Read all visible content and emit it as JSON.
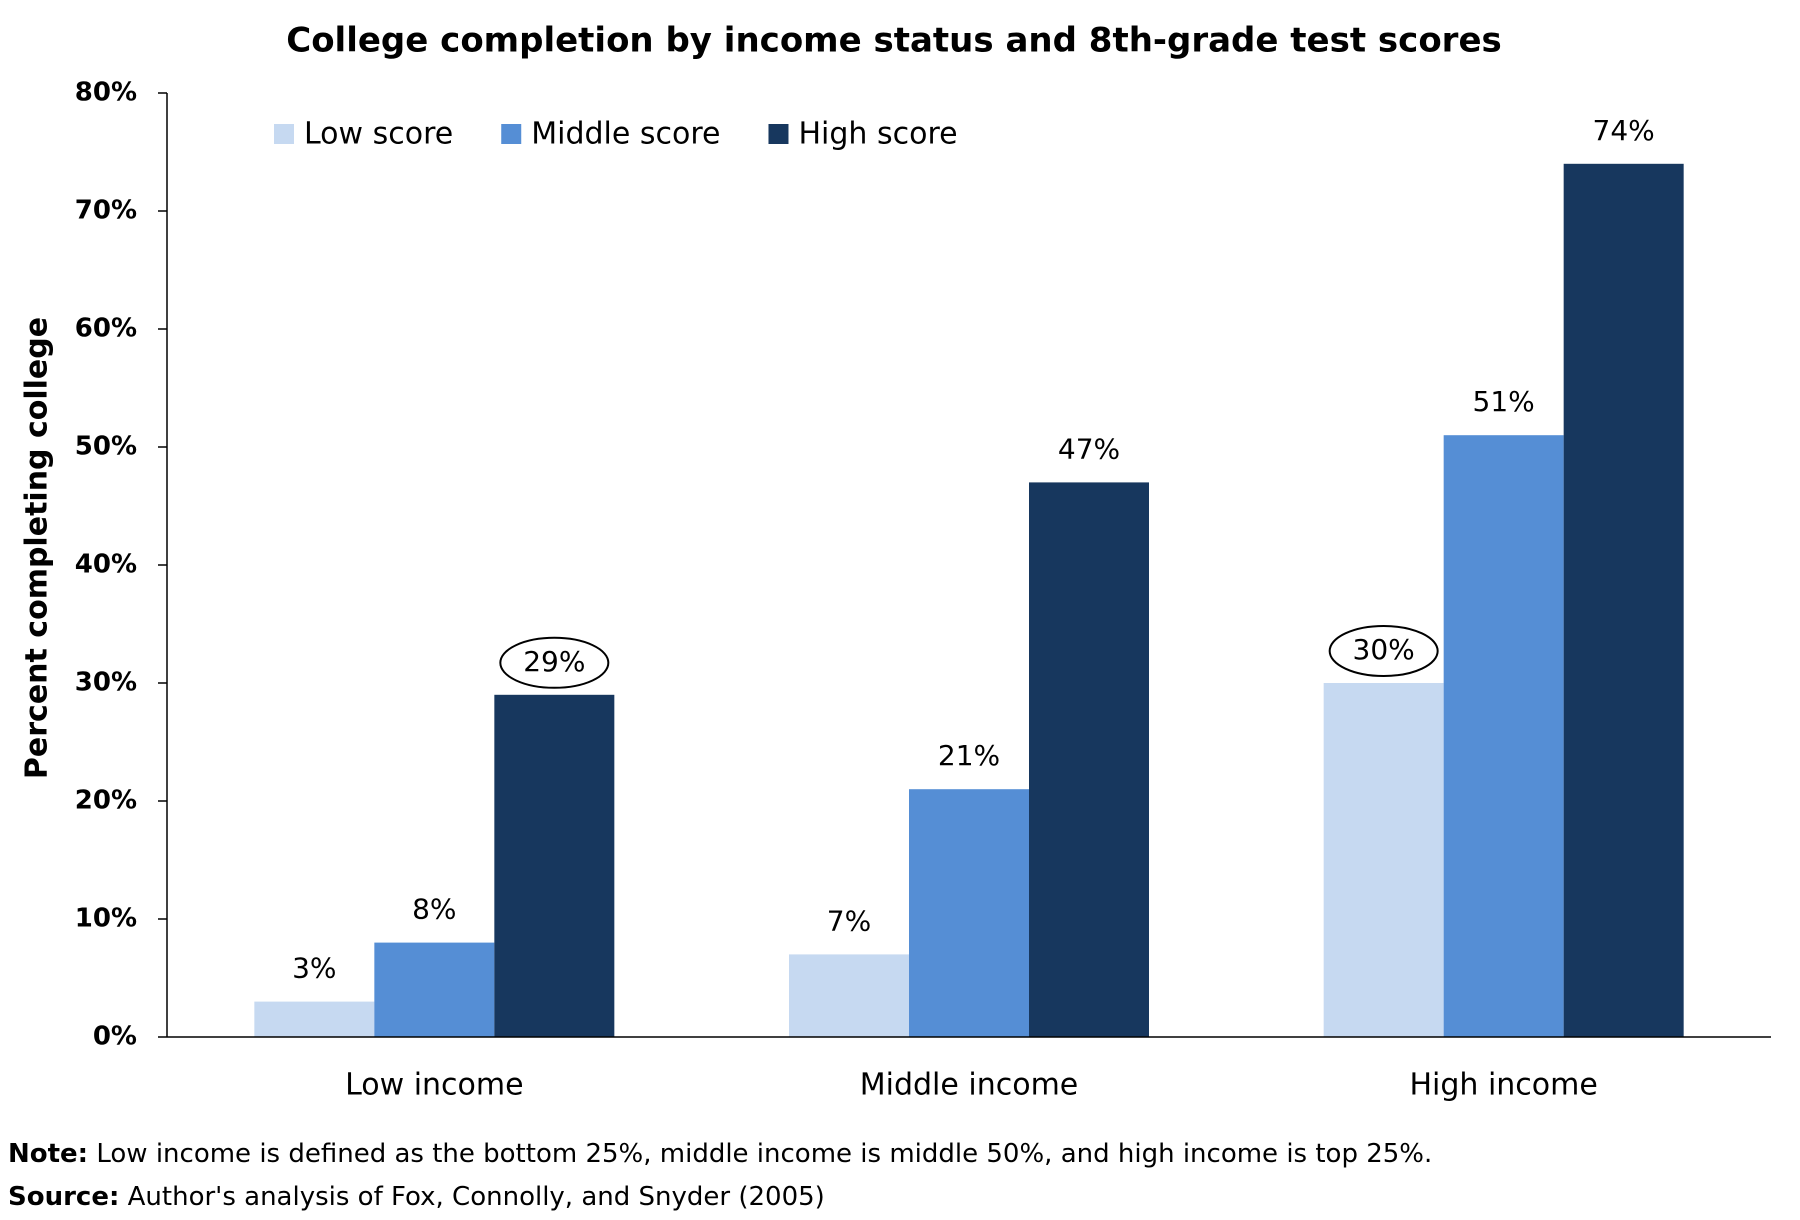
{
  "chart_data": {
    "type": "bar",
    "title": "College completion by income status and 8th-grade test scores",
    "y_label": "Percent completing college",
    "categories": [
      "Low income",
      "Middle income",
      "High income"
    ],
    "series": [
      {
        "name": "Low score",
        "color": "#c6d9f1",
        "values": [
          3,
          7,
          30
        ],
        "value_labels": [
          "3%",
          "7%",
          "30%"
        ],
        "circled": [
          false,
          false,
          true
        ]
      },
      {
        "name": "Middle score",
        "color": "#558ed5",
        "values": [
          8,
          21,
          51
        ],
        "value_labels": [
          "8%",
          "21%",
          "51%"
        ],
        "circled": [
          false,
          false,
          false
        ]
      },
      {
        "name": "High score",
        "color": "#17375e",
        "values": [
          29,
          47,
          74
        ],
        "value_labels": [
          "29%",
          "47%",
          "74%"
        ],
        "circled": [
          true,
          false,
          false
        ]
      }
    ],
    "ylim": [
      0,
      80
    ],
    "yticks": [
      {
        "value": 0,
        "label": "0%"
      },
      {
        "value": 10,
        "label": "10%"
      },
      {
        "value": 20,
        "label": "20%"
      },
      {
        "value": 30,
        "label": "30%"
      },
      {
        "value": 40,
        "label": "40%"
      },
      {
        "value": 50,
        "label": "50%"
      },
      {
        "value": 60,
        "label": "60%"
      },
      {
        "value": 70,
        "label": "70%"
      },
      {
        "value": 80,
        "label": "80%"
      }
    ],
    "grid": false,
    "legend_position": "top-left",
    "note_label": "Note:",
    "note": "Low income is defined as the bottom 25%, middle income is middle 50%, and high income is top 25%.",
    "source_label": "Source:",
    "source": "Author's analysis of Fox, Connolly, and Snyder (2005)"
  }
}
